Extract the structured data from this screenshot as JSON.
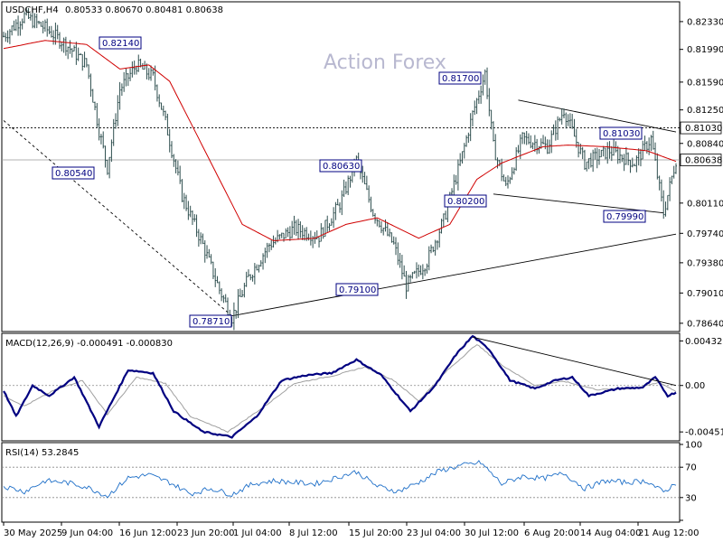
{
  "header": {
    "symbol": "USDCHF,H4",
    "ohlc": "0.80533 0.80670 0.80481 0.80638"
  },
  "watermark": "Action Forex",
  "colors": {
    "candle": "#2f4f4f",
    "ma": "#d00000",
    "macd": "#000080",
    "signal": "#a0a0a0",
    "rsi": "#1e6fc8",
    "tag_border": "#000080",
    "tag_text": "#000080"
  },
  "chart_data": [
    {
      "type": "candlestick",
      "pane": "price",
      "ylim": [
        0.7855,
        0.8255
      ],
      "y_ticks": [
        "0.82330",
        "0.81990",
        "0.81590",
        "0.81250",
        "0.80840",
        "0.80110",
        "0.79740",
        "0.79380",
        "0.79010",
        "0.78640"
      ],
      "current_price": "0.80638",
      "level_line": "0.81030",
      "price_labels": [
        "0.82140",
        "0.80540",
        "0.81700",
        "0.80630",
        "0.80200",
        "0.79990",
        "0.81030",
        "0.79100",
        "0.78710"
      ],
      "x_ticks": [
        "30 May 2025",
        "9 Jun 04:00",
        "16 Jun 12:00",
        "23 Jun 20:00",
        "1 Jul 04:00",
        "8 Jul 12:00",
        "15 Jul 20:00",
        "23 Jul 04:00",
        "30 Jul 12:00",
        "6 Aug 20:00",
        "14 Aug 04:00",
        "21 Aug 12:00"
      ],
      "anchors": [
        {
          "x": 0,
          "y": 0.8215
        },
        {
          "x": 10,
          "y": 0.824
        },
        {
          "x": 20,
          "y": 0.8225
        },
        {
          "x": 30,
          "y": 0.8205
        },
        {
          "x": 40,
          "y": 0.818
        },
        {
          "x": 46,
          "y": 0.81
        },
        {
          "x": 50,
          "y": 0.8054
        },
        {
          "x": 56,
          "y": 0.815
        },
        {
          "x": 64,
          "y": 0.818
        },
        {
          "x": 72,
          "y": 0.8165
        },
        {
          "x": 78,
          "y": 0.811
        },
        {
          "x": 86,
          "y": 0.802
        },
        {
          "x": 96,
          "y": 0.796
        },
        {
          "x": 104,
          "y": 0.7905
        },
        {
          "x": 110,
          "y": 0.7871
        },
        {
          "x": 118,
          "y": 0.792
        },
        {
          "x": 128,
          "y": 0.796
        },
        {
          "x": 140,
          "y": 0.798
        },
        {
          "x": 152,
          "y": 0.797
        },
        {
          "x": 162,
          "y": 0.801
        },
        {
          "x": 170,
          "y": 0.8063
        },
        {
          "x": 178,
          "y": 0.8
        },
        {
          "x": 188,
          "y": 0.796
        },
        {
          "x": 194,
          "y": 0.791
        },
        {
          "x": 204,
          "y": 0.794
        },
        {
          "x": 212,
          "y": 0.799
        },
        {
          "x": 220,
          "y": 0.806
        },
        {
          "x": 226,
          "y": 0.812
        },
        {
          "x": 232,
          "y": 0.817
        },
        {
          "x": 236,
          "y": 0.808
        },
        {
          "x": 242,
          "y": 0.803
        },
        {
          "x": 250,
          "y": 0.809
        },
        {
          "x": 262,
          "y": 0.808
        },
        {
          "x": 270,
          "y": 0.8125
        },
        {
          "x": 280,
          "y": 0.806
        },
        {
          "x": 292,
          "y": 0.8075
        },
        {
          "x": 304,
          "y": 0.806
        },
        {
          "x": 312,
          "y": 0.809
        },
        {
          "x": 318,
          "y": 0.7999
        },
        {
          "x": 324,
          "y": 0.8064
        }
      ],
      "ma_anchors": [
        {
          "x": 0,
          "y": 0.82
        },
        {
          "x": 20,
          "y": 0.821
        },
        {
          "x": 40,
          "y": 0.8205
        },
        {
          "x": 56,
          "y": 0.8175
        },
        {
          "x": 70,
          "y": 0.818
        },
        {
          "x": 80,
          "y": 0.816
        },
        {
          "x": 100,
          "y": 0.806
        },
        {
          "x": 115,
          "y": 0.7985
        },
        {
          "x": 130,
          "y": 0.7965
        },
        {
          "x": 150,
          "y": 0.7968
        },
        {
          "x": 165,
          "y": 0.7985
        },
        {
          "x": 180,
          "y": 0.7993
        },
        {
          "x": 200,
          "y": 0.7968
        },
        {
          "x": 215,
          "y": 0.7985
        },
        {
          "x": 228,
          "y": 0.804
        },
        {
          "x": 240,
          "y": 0.806
        },
        {
          "x": 260,
          "y": 0.808
        },
        {
          "x": 272,
          "y": 0.8082
        },
        {
          "x": 290,
          "y": 0.808
        },
        {
          "x": 310,
          "y": 0.8075
        },
        {
          "x": 324,
          "y": 0.8062
        }
      ]
    },
    {
      "type": "line",
      "pane": "macd",
      "label": "MACD(12,26,9) -0.000491 -0.000830",
      "ylim": [
        -0.0052,
        0.0048
      ],
      "y_ticks": [
        "0.004325",
        "0.00",
        "-0.004511"
      ],
      "series": [
        {
          "name": "MACD",
          "anchors": [
            {
              "x": 0,
              "y": -0.0005
            },
            {
              "x": 6,
              "y": -0.003
            },
            {
              "x": 14,
              "y": 0.0
            },
            {
              "x": 22,
              "y": -0.001
            },
            {
              "x": 34,
              "y": 0.0008
            },
            {
              "x": 46,
              "y": -0.004
            },
            {
              "x": 60,
              "y": 0.0015
            },
            {
              "x": 72,
              "y": 0.0012
            },
            {
              "x": 82,
              "y": -0.0025
            },
            {
              "x": 96,
              "y": -0.0045
            },
            {
              "x": 110,
              "y": -0.005
            },
            {
              "x": 122,
              "y": -0.003
            },
            {
              "x": 134,
              "y": 0.0005
            },
            {
              "x": 146,
              "y": 0.001
            },
            {
              "x": 158,
              "y": 0.0012
            },
            {
              "x": 170,
              "y": 0.0025
            },
            {
              "x": 182,
              "y": 0.001
            },
            {
              "x": 196,
              "y": -0.0025
            },
            {
              "x": 208,
              "y": 0.0
            },
            {
              "x": 218,
              "y": 0.003
            },
            {
              "x": 226,
              "y": 0.0048
            },
            {
              "x": 234,
              "y": 0.0035
            },
            {
              "x": 244,
              "y": 0.0005
            },
            {
              "x": 256,
              "y": -0.0003
            },
            {
              "x": 266,
              "y": 0.0005
            },
            {
              "x": 274,
              "y": 0.0008
            },
            {
              "x": 282,
              "y": -0.001
            },
            {
              "x": 296,
              "y": -0.0003
            },
            {
              "x": 308,
              "y": -0.0002
            },
            {
              "x": 314,
              "y": 0.0008
            },
            {
              "x": 320,
              "y": -0.001
            },
            {
              "x": 326,
              "y": -0.0005
            }
          ]
        },
        {
          "name": "Signal",
          "anchors": [
            {
              "x": 0,
              "y": -0.001
            },
            {
              "x": 10,
              "y": -0.002
            },
            {
              "x": 24,
              "y": -0.0005
            },
            {
              "x": 38,
              "y": 0.0005
            },
            {
              "x": 50,
              "y": -0.0028
            },
            {
              "x": 64,
              "y": 0.0008
            },
            {
              "x": 78,
              "y": 0.0002
            },
            {
              "x": 90,
              "y": -0.003
            },
            {
              "x": 108,
              "y": -0.0045
            },
            {
              "x": 126,
              "y": -0.002
            },
            {
              "x": 140,
              "y": 0.0002
            },
            {
              "x": 160,
              "y": 0.001
            },
            {
              "x": 174,
              "y": 0.0018
            },
            {
              "x": 188,
              "y": 0.0005
            },
            {
              "x": 200,
              "y": -0.0015
            },
            {
              "x": 214,
              "y": 0.0015
            },
            {
              "x": 228,
              "y": 0.004
            },
            {
              "x": 240,
              "y": 0.002
            },
            {
              "x": 256,
              "y": 0.0
            },
            {
              "x": 270,
              "y": 0.0004
            },
            {
              "x": 286,
              "y": -0.0004
            },
            {
              "x": 304,
              "y": -0.0003
            },
            {
              "x": 316,
              "y": 0.0003
            },
            {
              "x": 326,
              "y": -0.0008
            }
          ]
        }
      ]
    },
    {
      "type": "line",
      "pane": "rsi",
      "label": "RSI(14) 53.2845",
      "ylim": [
        0,
        100
      ],
      "y_ticks": [
        "100",
        "70",
        "30",
        "0"
      ],
      "series": [
        {
          "name": "RSI",
          "anchors": [
            {
              "x": 0,
              "y": 45
            },
            {
              "x": 10,
              "y": 38
            },
            {
              "x": 20,
              "y": 52
            },
            {
              "x": 30,
              "y": 50
            },
            {
              "x": 40,
              "y": 44
            },
            {
              "x": 50,
              "y": 32
            },
            {
              "x": 60,
              "y": 56
            },
            {
              "x": 70,
              "y": 60
            },
            {
              "x": 80,
              "y": 50
            },
            {
              "x": 90,
              "y": 35
            },
            {
              "x": 100,
              "y": 42
            },
            {
              "x": 110,
              "y": 34
            },
            {
              "x": 120,
              "y": 48
            },
            {
              "x": 130,
              "y": 52
            },
            {
              "x": 140,
              "y": 50
            },
            {
              "x": 150,
              "y": 48
            },
            {
              "x": 160,
              "y": 56
            },
            {
              "x": 170,
              "y": 64
            },
            {
              "x": 180,
              "y": 45
            },
            {
              "x": 190,
              "y": 38
            },
            {
              "x": 200,
              "y": 50
            },
            {
              "x": 210,
              "y": 65
            },
            {
              "x": 220,
              "y": 72
            },
            {
              "x": 230,
              "y": 76
            },
            {
              "x": 240,
              "y": 48
            },
            {
              "x": 250,
              "y": 58
            },
            {
              "x": 260,
              "y": 55
            },
            {
              "x": 270,
              "y": 62
            },
            {
              "x": 280,
              "y": 42
            },
            {
              "x": 290,
              "y": 52
            },
            {
              "x": 300,
              "y": 50
            },
            {
              "x": 310,
              "y": 52
            },
            {
              "x": 318,
              "y": 37
            },
            {
              "x": 326,
              "y": 53.28
            }
          ]
        }
      ]
    }
  ]
}
